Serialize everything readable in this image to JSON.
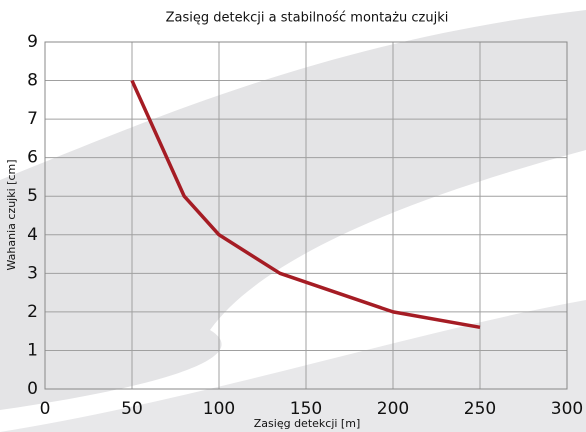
{
  "chart_data": {
    "type": "line",
    "title": "Zasięg detekcji a stabilność montażu czujki",
    "xlabel": "Zasięg detekcji [m]",
    "ylabel": "Wahania czujki [cm]",
    "x": [
      50,
      80,
      100,
      135,
      200,
      250
    ],
    "values": [
      8,
      5,
      4,
      3,
      2,
      1.6
    ],
    "color": "#a51c24",
    "xlim": [
      0,
      300
    ],
    "xticks": [
      0,
      50,
      100,
      150,
      200,
      250,
      300
    ],
    "ylim": [
      0,
      9
    ],
    "yticks": [
      0,
      1,
      2,
      3,
      4,
      5,
      6,
      7,
      8,
      9
    ],
    "grid": true
  }
}
